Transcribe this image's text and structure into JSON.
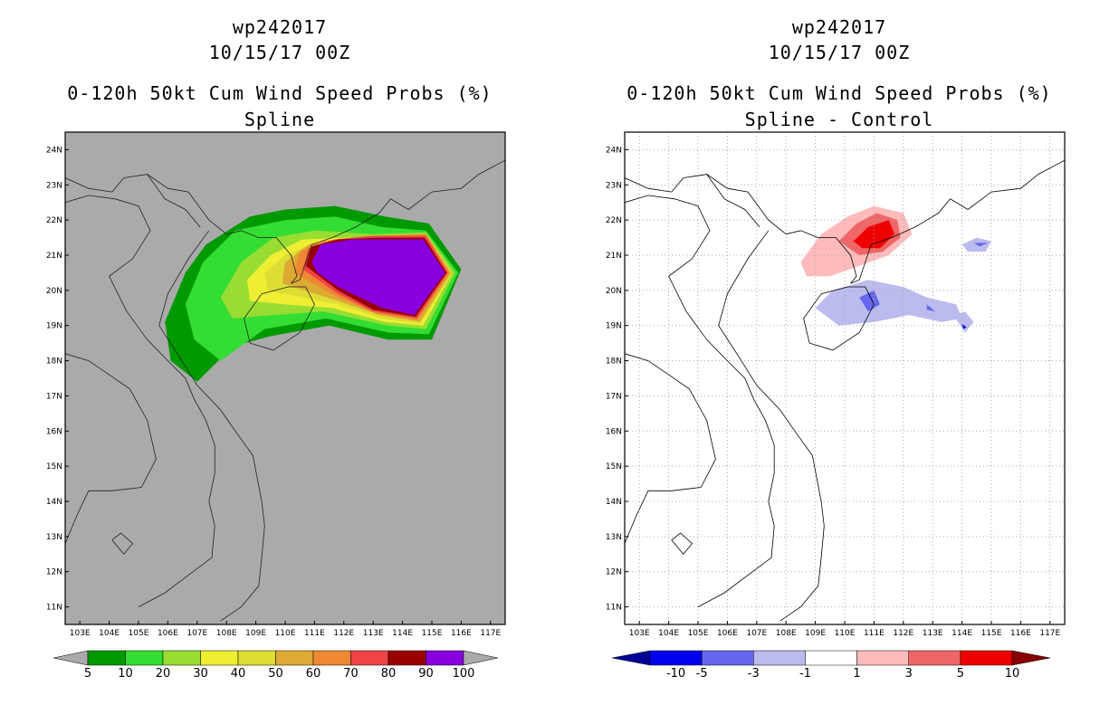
{
  "panels": [
    {
      "id": "left",
      "title_line1": "wp242017",
      "title_line2": "10/15/17 00Z",
      "title_line3": "0-120h 50kt Cum Wind Speed Probs (%)",
      "title_line4": "Spline",
      "background": "#aaaaaa"
    },
    {
      "id": "right",
      "title_line1": "wp242017",
      "title_line2": "10/15/17 00Z",
      "title_line3": "0-120h 50kt Cum Wind Speed Probs (%)",
      "title_line4": "Spline - Control",
      "background": "#ffffff"
    }
  ],
  "chart_data": [
    {
      "type": "heatmap",
      "title": "0-120h 50kt Cum Wind Speed Probs (%) Spline",
      "xlabel": "",
      "ylabel": "",
      "xlim": [
        102.5,
        117.5
      ],
      "ylim": [
        10.5,
        24.5
      ],
      "x_ticks": [
        "103E",
        "104E",
        "105E",
        "106E",
        "107E",
        "108E",
        "109E",
        "110E",
        "111E",
        "112E",
        "113E",
        "114E",
        "115E",
        "116E",
        "117E"
      ],
      "y_ticks": [
        "11N",
        "12N",
        "13N",
        "14N",
        "15N",
        "16N",
        "17N",
        "18N",
        "19N",
        "20N",
        "21N",
        "22N",
        "23N",
        "24N"
      ],
      "colorbar": {
        "labels": [
          "5",
          "10",
          "20",
          "30",
          "40",
          "50",
          "60",
          "70",
          "80",
          "90",
          "100"
        ],
        "colors": [
          "#009900",
          "#33dd33",
          "#99dd33",
          "#eeee33",
          "#dddd33",
          "#ddaa33",
          "#ee8833",
          "#ee4444",
          "#990000",
          "#8800dd"
        ],
        "end_colors": [
          "#aaaaaa",
          "#aaaaaa"
        ]
      },
      "contour_levels": [
        5,
        10,
        20,
        30,
        40,
        50,
        60,
        70,
        80,
        90
      ]
    },
    {
      "type": "heatmap",
      "title": "0-120h 50kt Cum Wind Speed Probs (%) Spline - Control",
      "xlabel": "",
      "ylabel": "",
      "xlim": [
        102.5,
        117.5
      ],
      "ylim": [
        10.5,
        24.5
      ],
      "x_ticks": [
        "103E",
        "104E",
        "105E",
        "106E",
        "107E",
        "108E",
        "109E",
        "110E",
        "111E",
        "112E",
        "113E",
        "114E",
        "115E",
        "116E",
        "117E"
      ],
      "y_ticks": [
        "11N",
        "12N",
        "13N",
        "14N",
        "15N",
        "16N",
        "17N",
        "18N",
        "19N",
        "20N",
        "21N",
        "22N",
        "23N",
        "24N"
      ],
      "colorbar": {
        "labels": [
          "-10",
          "-5",
          "-3",
          "-1",
          "1",
          "3",
          "5",
          "10"
        ],
        "colors": [
          "#0000ee",
          "#6666ee",
          "#bbbbee",
          "#ffffff",
          "#ffbbbb",
          "#ee6666",
          "#ee0000"
        ],
        "end_colors": [
          "#000099",
          "#880000"
        ]
      },
      "contour_levels": [
        -5,
        -3,
        -1,
        1,
        3,
        5
      ]
    }
  ]
}
